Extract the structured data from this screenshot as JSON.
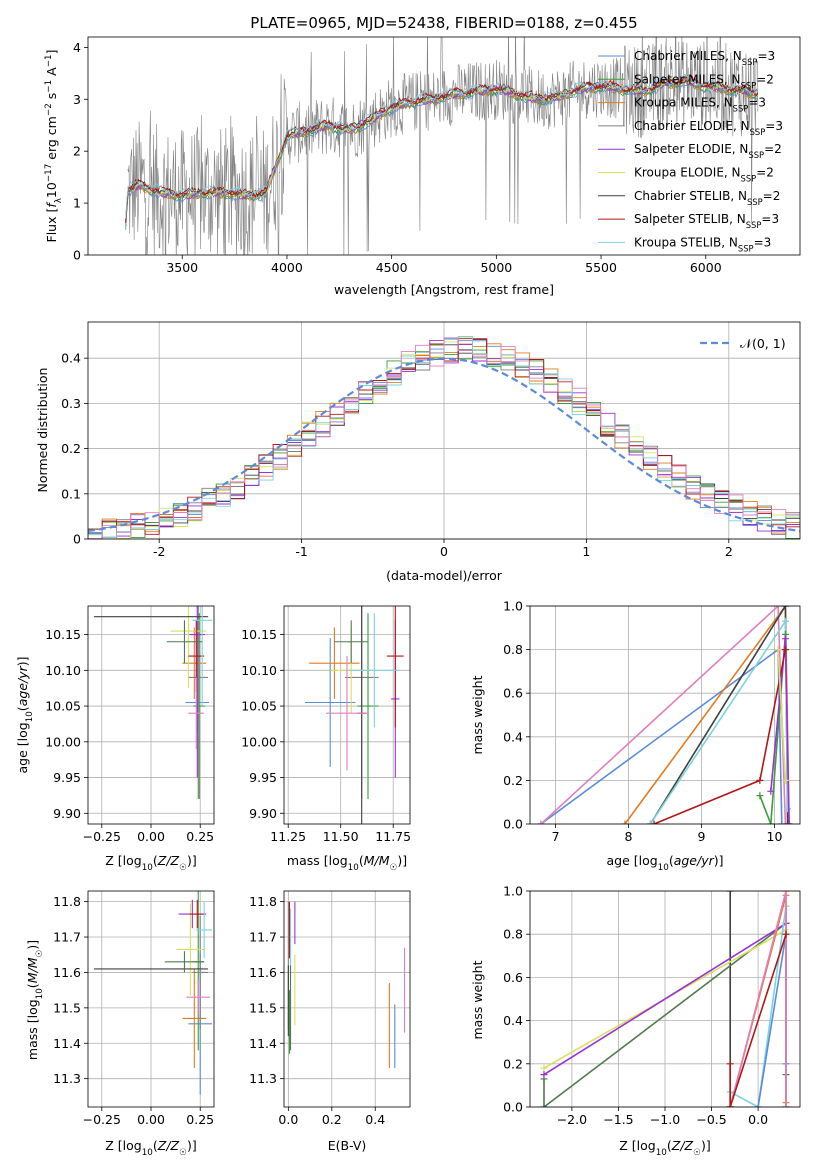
{
  "title": "PLATE=0965, MJD=52438, FIBERID=0188, z=0.455",
  "legend_entries": [
    {
      "name": "Chabrier MILES, N$_{SSP}$=3",
      "color": "#5b8bd9"
    },
    {
      "name": "Salpeter MILES, N$_{SSP}$=2",
      "color": "#3a9c3a"
    },
    {
      "name": "Kroupa MILES, N$_{SSP}$=3",
      "color": "#e07b20"
    },
    {
      "name": "Chabrier ELODIE, N$_{SSP}$=3",
      "color": "#808080"
    },
    {
      "name": "Salpeter ELODIE, N$_{SSP}$=2",
      "color": "#9b30d9"
    },
    {
      "name": "Kroupa ELODIE, N$_{SSP}$=2",
      "color": "#d8e060"
    },
    {
      "name": "Chabrier STELIB, N$_{SSP}$=2",
      "color": "#404040"
    },
    {
      "name": "Salpeter STELIB, N$_{SSP}$=3",
      "color": "#b01818"
    },
    {
      "name": "Kroupa STELIB, N$_{SSP}$=3",
      "color": "#7ad3e0"
    }
  ],
  "chart_data": [
    {
      "id": "spectrum",
      "type": "line",
      "xlabel": "wavelength [Angstrom, rest frame]",
      "ylabel": "Flux [f_λ 10^-17 erg cm^-2 s^-1 A^-1]",
      "xlim": [
        3050,
        6450
      ],
      "ylim": [
        0,
        4.2
      ],
      "xticks": [
        3500,
        4000,
        4500,
        5000,
        5500,
        6000
      ],
      "yticks": [
        0,
        1,
        2,
        3,
        4
      ],
      "grid": false,
      "legend": "upper-right",
      "model_shape": [
        [
          3220,
          0.0
        ],
        [
          3240,
          1.25
        ],
        [
          3300,
          1.35
        ],
        [
          3400,
          1.2
        ],
        [
          3500,
          1.15
        ],
        [
          3600,
          1.2
        ],
        [
          3700,
          1.2
        ],
        [
          3800,
          1.15
        ],
        [
          3900,
          1.2
        ],
        [
          4000,
          2.3
        ],
        [
          4100,
          2.4
        ],
        [
          4200,
          2.5
        ],
        [
          4300,
          2.4
        ],
        [
          4400,
          2.6
        ],
        [
          4500,
          2.85
        ],
        [
          4600,
          2.95
        ],
        [
          4700,
          3.0
        ],
        [
          4800,
          3.1
        ],
        [
          4900,
          3.15
        ],
        [
          5000,
          3.2
        ],
        [
          5100,
          3.1
        ],
        [
          5200,
          3.0
        ],
        [
          5300,
          3.05
        ],
        [
          5400,
          3.2
        ],
        [
          5500,
          3.25
        ],
        [
          5600,
          3.2
        ],
        [
          5700,
          3.15
        ],
        [
          5800,
          3.3
        ],
        [
          5900,
          3.35
        ],
        [
          6000,
          3.25
        ],
        [
          6100,
          3.2
        ],
        [
          6200,
          3.15
        ],
        [
          6250,
          3.1
        ]
      ]
    },
    {
      "id": "residual-histogram",
      "type": "bar",
      "xlabel": "(data-model)/error",
      "ylabel": "Normed distribution",
      "xlim": [
        -2.5,
        2.5
      ],
      "ylim": [
        0,
        0.48
      ],
      "xticks": [
        -2,
        -1,
        0,
        1,
        2
      ],
      "yticks": [
        0.0,
        0.1,
        0.2,
        0.3,
        0.4
      ],
      "grid": true,
      "legend": "upper-right",
      "normal_curve_label": "𝒩(0, 1)",
      "bin_width": 0.1
    },
    {
      "id": "age-vs-Z",
      "type": "scatter",
      "xlabel": "Z [log₁₀(Z/Z⊙)]",
      "ylabel": "age  [log₁₀(age/yr)]",
      "xlim": [
        -0.32,
        0.32
      ],
      "ylim": [
        9.885,
        10.19
      ],
      "xticks": [
        -0.25,
        0.0,
        0.25
      ],
      "xtick_labels": [
        "−0.25",
        "0.00",
        "0.25"
      ],
      "yticks": [
        9.9,
        9.95,
        10.0,
        10.05,
        10.1,
        10.15
      ],
      "ytick_labels": [
        "9.90",
        "9.95",
        "10.00",
        "10.05",
        "10.10",
        "10.15"
      ],
      "grid": true,
      "points": [
        {
          "x": 0.235,
          "y": 10.055,
          "xerr": 0.06,
          "yerr": 0.04,
          "color": "#5b8bd9"
        },
        {
          "x": 0.245,
          "y": 10.05,
          "xerr": 0.03,
          "yerr": 0.13,
          "color": "#3a9c3a"
        },
        {
          "x": 0.22,
          "y": 10.11,
          "xerr": 0.06,
          "yerr": 0.05,
          "color": "#e07b20"
        },
        {
          "x": 0.24,
          "y": 10.09,
          "xerr": 0.05,
          "yerr": 0.17,
          "color": "#808080"
        },
        {
          "x": 0.235,
          "y": 10.15,
          "xerr": 0.04,
          "yerr": 0.2,
          "color": "#9b30d9"
        },
        {
          "x": 0.19,
          "y": 10.155,
          "xerr": 0.09,
          "yerr": 0.08,
          "color": "#d8e060"
        },
        {
          "x": 0.0,
          "y": 10.175,
          "xerr": 0.29,
          "yerr": 0.0,
          "color": "#404040"
        },
        {
          "x": 0.23,
          "y": 10.12,
          "xerr": 0.04,
          "yerr": 0.05,
          "color": "#b01818"
        },
        {
          "x": 0.26,
          "y": 10.17,
          "xerr": 0.05,
          "yerr": 0.12,
          "color": "#7ad3e0"
        },
        {
          "x": 0.17,
          "y": 10.14,
          "xerr": 0.09,
          "yerr": 0.03,
          "color": "#4f7a4f"
        },
        {
          "x": 0.23,
          "y": 10.04,
          "xerr": 0.04,
          "yerr": 0.05,
          "color": "#e07fc0"
        }
      ]
    },
    {
      "id": "age-vs-mass",
      "type": "scatter",
      "xlabel": "mass [log₁₀(M/M⊙)]",
      "ylabel": "",
      "xlim": [
        11.23,
        11.83
      ],
      "ylim": [
        9.885,
        10.19
      ],
      "xticks": [
        11.25,
        11.5,
        11.75
      ],
      "xtick_labels": [
        "11.25",
        "11.50",
        "11.75"
      ],
      "yticks": [
        9.9,
        9.95,
        10.0,
        10.05,
        10.1,
        10.15
      ],
      "ytick_labels": [
        "9.90",
        "9.95",
        "10.00",
        "10.05",
        "10.10",
        "10.15"
      ],
      "grid": true,
      "points": [
        {
          "x": 11.45,
          "y": 10.055,
          "xerr": 0.12,
          "yerr": 0.09,
          "color": "#5b8bd9"
        },
        {
          "x": 11.63,
          "y": 10.05,
          "xerr": 0.05,
          "yerr": 0.13,
          "color": "#3a9c3a"
        },
        {
          "x": 11.47,
          "y": 10.11,
          "xerr": 0.12,
          "yerr": 0.05,
          "color": "#e07b20"
        },
        {
          "x": 11.6,
          "y": 10.09,
          "xerr": 0.08,
          "yerr": 0.17,
          "color": "#808080"
        },
        {
          "x": 11.76,
          "y": 10.06,
          "xerr": 0.02,
          "yerr": 0.11,
          "color": "#9b30d9"
        },
        {
          "x": 11.55,
          "y": 10.1,
          "xerr": 0.1,
          "yerr": 0.06,
          "color": "#d8e060"
        },
        {
          "x": 11.6,
          "y": 10.04,
          "xerr": 0.02,
          "yerr": 0.2,
          "color": "#404040"
        },
        {
          "x": 11.76,
          "y": 10.12,
          "xerr": 0.04,
          "yerr": 0.1,
          "color": "#b01818"
        },
        {
          "x": 11.66,
          "y": 10.1,
          "xerr": 0.12,
          "yerr": 0.08,
          "color": "#7ad3e0"
        },
        {
          "x": 11.55,
          "y": 10.14,
          "xerr": 0.08,
          "yerr": 0.03,
          "color": "#4f7a4f"
        },
        {
          "x": 11.53,
          "y": 10.04,
          "xerr": 0.1,
          "yerr": 0.08,
          "color": "#e07fc0"
        }
      ]
    },
    {
      "id": "mass-weight-vs-age",
      "type": "line",
      "xlabel": "age  [log₁₀(age/yr)]",
      "ylabel": "mass weight",
      "xlim": [
        6.65,
        10.35
      ],
      "ylim": [
        0,
        1.0
      ],
      "xticks": [
        7,
        8,
        9,
        10
      ],
      "yticks": [
        0.0,
        0.2,
        0.4,
        0.6,
        0.8,
        1.0
      ],
      "ytick_labels": [
        "0.0",
        "0.2",
        "0.4",
        "0.6",
        "0.8",
        "1.0"
      ],
      "grid": true,
      "series": [
        {
          "color": "#5b8bd9",
          "x": [
            6.8,
            10.05,
            10.1
          ],
          "y": [
            0.0,
            0.8,
            0.0
          ]
        },
        {
          "color": "#e07b20",
          "x": [
            7.95,
            10.15,
            10.2
          ],
          "y": [
            0.0,
            1.0,
            0.0
          ]
        },
        {
          "color": "#e07fc0",
          "x": [
            6.8,
            10.05,
            10.15
          ],
          "y": [
            0.0,
            1.0,
            0.0
          ]
        },
        {
          "color": "#404040",
          "x": [
            8.3,
            10.15,
            10.18
          ],
          "y": [
            0.0,
            1.0,
            0.0
          ]
        },
        {
          "color": "#7ad3e0",
          "x": [
            8.3,
            10.15,
            10.18
          ],
          "y": [
            0.0,
            0.93,
            0.07
          ]
        },
        {
          "color": "#3a9c3a",
          "x": [
            9.8,
            9.95,
            10.15
          ],
          "y": [
            0.13,
            0.0,
            0.87
          ]
        },
        {
          "color": "#9b30d9",
          "x": [
            9.95,
            10.15,
            10.2
          ],
          "y": [
            0.15,
            0.85,
            0.0
          ]
        },
        {
          "color": "#b01818",
          "x": [
            8.35,
            9.8,
            10.15
          ],
          "y": [
            0.0,
            0.2,
            0.8
          ]
        },
        {
          "color": "#d8e060",
          "x": [
            10.05,
            10.15
          ],
          "y": [
            0.8,
            0.2
          ]
        }
      ]
    },
    {
      "id": "mass-vs-Z",
      "type": "scatter",
      "xlabel": "Z [log₁₀(Z/Z⊙)]",
      "ylabel": "mass [log₁₀(M/M⊙)]",
      "xlim": [
        -0.32,
        0.32
      ],
      "ylim": [
        11.22,
        11.83
      ],
      "xticks": [
        -0.25,
        0.0,
        0.25
      ],
      "xtick_labels": [
        "−0.25",
        "0.00",
        "0.25"
      ],
      "yticks": [
        11.3,
        11.4,
        11.5,
        11.6,
        11.7,
        11.8
      ],
      "ytick_labels": [
        "11.3",
        "11.4",
        "11.5",
        "11.6",
        "11.7",
        "11.8"
      ],
      "grid": true,
      "points": [
        {
          "x": 0.25,
          "y": 11.455,
          "xerr": 0.06,
          "yerr": 0.2,
          "color": "#5b8bd9"
        },
        {
          "x": 0.24,
          "y": 11.63,
          "xerr": 0.03,
          "yerr": 0.25,
          "color": "#3a9c3a"
        },
        {
          "x": 0.22,
          "y": 11.47,
          "xerr": 0.06,
          "yerr": 0.14,
          "color": "#e07b20"
        },
        {
          "x": 0.25,
          "y": 11.6,
          "xerr": 0.04,
          "yerr": 0.16,
          "color": "#808080"
        },
        {
          "x": 0.21,
          "y": 11.765,
          "xerr": 0.07,
          "yerr": 0.04,
          "color": "#9b30d9"
        },
        {
          "x": 0.2,
          "y": 11.665,
          "xerr": 0.07,
          "yerr": 0.13,
          "color": "#d8e060"
        },
        {
          "x": 0.0,
          "y": 11.61,
          "xerr": 0.29,
          "yerr": 0.0,
          "color": "#404040"
        },
        {
          "x": 0.235,
          "y": 11.765,
          "xerr": 0.04,
          "yerr": 0.04,
          "color": "#b01818"
        },
        {
          "x": 0.27,
          "y": 11.72,
          "xerr": 0.04,
          "yerr": 0.08,
          "color": "#7ad3e0"
        },
        {
          "x": 0.17,
          "y": 11.63,
          "xerr": 0.1,
          "yerr": 0.03,
          "color": "#4f7a4f"
        },
        {
          "x": 0.24,
          "y": 11.53,
          "xerr": 0.06,
          "yerr": 0.05,
          "color": "#e07fc0"
        }
      ]
    },
    {
      "id": "mass-vs-EBV",
      "type": "scatter",
      "xlabel": "E(B-V)",
      "ylabel": "",
      "xlim": [
        -0.02,
        0.56
      ],
      "ylim": [
        11.22,
        11.83
      ],
      "xticks": [
        0.0,
        0.2,
        0.4
      ],
      "xtick_labels": [
        "0.0",
        "0.2",
        "0.4"
      ],
      "yticks": [
        11.3,
        11.4,
        11.5,
        11.6,
        11.7,
        11.8
      ],
      "ytick_labels": [
        "11.3",
        "11.4",
        "11.5",
        "11.6",
        "11.7",
        "11.8"
      ],
      "grid": true,
      "points": [
        {
          "x": 0.49,
          "y": 11.42,
          "xerr": 0.0,
          "yerr": 0.09,
          "color": "#5b8bd9"
        },
        {
          "x": 0.005,
          "y": 11.46,
          "xerr": 0.0,
          "yerr": 0.09,
          "color": "#3a9c3a"
        },
        {
          "x": 0.465,
          "y": 11.45,
          "xerr": 0.0,
          "yerr": 0.12,
          "color": "#e07b20"
        },
        {
          "x": 0.0,
          "y": 11.62,
          "xerr": 0.0,
          "yerr": 0.18,
          "color": "#808080"
        },
        {
          "x": 0.03,
          "y": 11.74,
          "xerr": 0.0,
          "yerr": 0.06,
          "color": "#9b30d9"
        },
        {
          "x": 0.03,
          "y": 11.55,
          "xerr": 0.0,
          "yerr": 0.1,
          "color": "#d8e060"
        },
        {
          "x": 0.0,
          "y": 11.52,
          "xerr": 0.0,
          "yerr": 0.1,
          "color": "#404040"
        },
        {
          "x": 0.005,
          "y": 11.72,
          "xerr": 0.0,
          "yerr": 0.08,
          "color": "#b01818"
        },
        {
          "x": 0.01,
          "y": 11.68,
          "xerr": 0.0,
          "yerr": 0.1,
          "color": "#7ad3e0"
        },
        {
          "x": 0.01,
          "y": 11.5,
          "xerr": 0.0,
          "yerr": 0.12,
          "color": "#4f7a4f"
        },
        {
          "x": 0.535,
          "y": 11.55,
          "xerr": 0.0,
          "yerr": 0.12,
          "color": "#e07fc0"
        }
      ]
    },
    {
      "id": "mass-weight-vs-Z",
      "type": "line",
      "xlabel": "Z [log₁₀(Z/Z⊙)]",
      "ylabel": "mass weight",
      "xlim": [
        -2.45,
        0.45
      ],
      "ylim": [
        0,
        1.0
      ],
      "xticks": [
        -2.0,
        -1.5,
        -1.0,
        -0.5,
        0.0
      ],
      "xtick_labels": [
        "−2.0",
        "−1.5",
        "−1.0",
        "−0.5",
        "0.0"
      ],
      "yticks": [
        0.0,
        0.2,
        0.4,
        0.6,
        0.8,
        1.0
      ],
      "ytick_labels": [
        "0.0",
        "0.2",
        "0.4",
        "0.6",
        "0.8",
        "1.0"
      ],
      "grid": true,
      "series": [
        {
          "color": "#404040",
          "x": [
            -0.3,
            -0.3
          ],
          "y": [
            0.0,
            1.0
          ]
        },
        {
          "color": "#4f7a4f",
          "x": [
            -2.3,
            -2.3,
            0.3,
            0.3
          ],
          "y": [
            0.13,
            0.0,
            0.85,
            0.15
          ]
        },
        {
          "color": "#d8e060",
          "x": [
            -2.3,
            0.3,
            0.3
          ],
          "y": [
            0.18,
            0.82,
            0.0
          ]
        },
        {
          "color": "#9b30d9",
          "x": [
            -2.3,
            0.3,
            0.3
          ],
          "y": [
            0.15,
            0.85,
            0.0
          ]
        },
        {
          "color": "#7ad3e0",
          "x": [
            -0.3,
            0.0,
            0.3,
            0.3
          ],
          "y": [
            0.07,
            0.0,
            0.93,
            0.0
          ]
        },
        {
          "color": "#5b8bd9",
          "x": [
            0.0,
            0.3,
            0.3
          ],
          "y": [
            0.0,
            0.8,
            0.2
          ]
        },
        {
          "color": "#e07b20",
          "x": [
            -0.3,
            0.3,
            0.3
          ],
          "y": [
            0.0,
            0.98,
            0.02
          ]
        },
        {
          "color": "#e07fc0",
          "x": [
            -0.3,
            0.3,
            0.3
          ],
          "y": [
            0.0,
            1.0,
            0.0
          ]
        },
        {
          "color": "#b01818",
          "x": [
            -0.3,
            -0.3,
            0.3
          ],
          "y": [
            0.2,
            0.0,
            0.8
          ]
        }
      ]
    }
  ]
}
